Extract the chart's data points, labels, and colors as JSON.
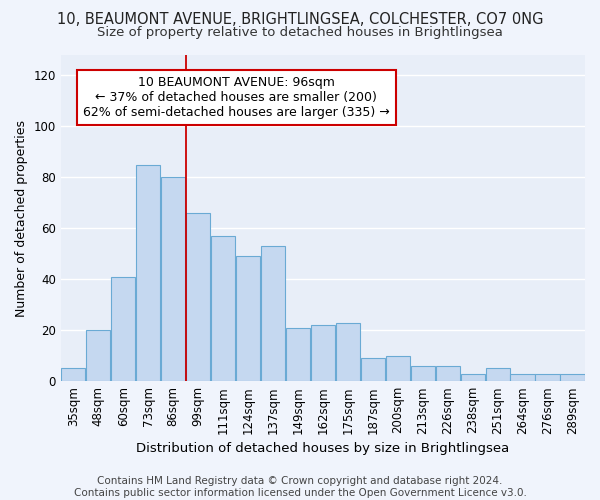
{
  "title1": "10, BEAUMONT AVENUE, BRIGHTLINGSEA, COLCHESTER, CO7 0NG",
  "title2": "Size of property relative to detached houses in Brightlingsea",
  "xlabel": "Distribution of detached houses by size in Brightlingsea",
  "ylabel": "Number of detached properties",
  "categories": [
    "35sqm",
    "48sqm",
    "60sqm",
    "73sqm",
    "86sqm",
    "99sqm",
    "111sqm",
    "124sqm",
    "137sqm",
    "149sqm",
    "162sqm",
    "175sqm",
    "187sqm",
    "200sqm",
    "213sqm",
    "226sqm",
    "238sqm",
    "251sqm",
    "264sqm",
    "276sqm",
    "289sqm"
  ],
  "values": [
    5,
    20,
    41,
    85,
    80,
    66,
    57,
    49,
    53,
    21,
    22,
    23,
    9,
    10,
    6,
    6,
    3,
    5,
    3,
    3,
    3
  ],
  "bar_color": "#c5d8f0",
  "bar_edge_color": "#6aaad4",
  "fig_bg_color": "#f0f4fc",
  "ax_bg_color": "#e8eef8",
  "grid_color": "#ffffff",
  "vline_x": 4.5,
  "vline_color": "#cc0000",
  "annotation_line1": "10 BEAUMONT AVENUE: 96sqm",
  "annotation_line2": "← 37% of detached houses are smaller (200)",
  "annotation_line3": "62% of semi-detached houses are larger (335) →",
  "annotation_box_color": "#ffffff",
  "annotation_box_edge": "#cc0000",
  "ylim": [
    0,
    128
  ],
  "yticks": [
    0,
    20,
    40,
    60,
    80,
    100,
    120
  ],
  "footer": "Contains HM Land Registry data © Crown copyright and database right 2024.\nContains public sector information licensed under the Open Government Licence v3.0.",
  "title_fontsize": 10.5,
  "subtitle_fontsize": 9.5,
  "ylabel_fontsize": 9,
  "xlabel_fontsize": 9.5,
  "tick_fontsize": 8.5,
  "annotation_fontsize": 9,
  "footer_fontsize": 7.5
}
